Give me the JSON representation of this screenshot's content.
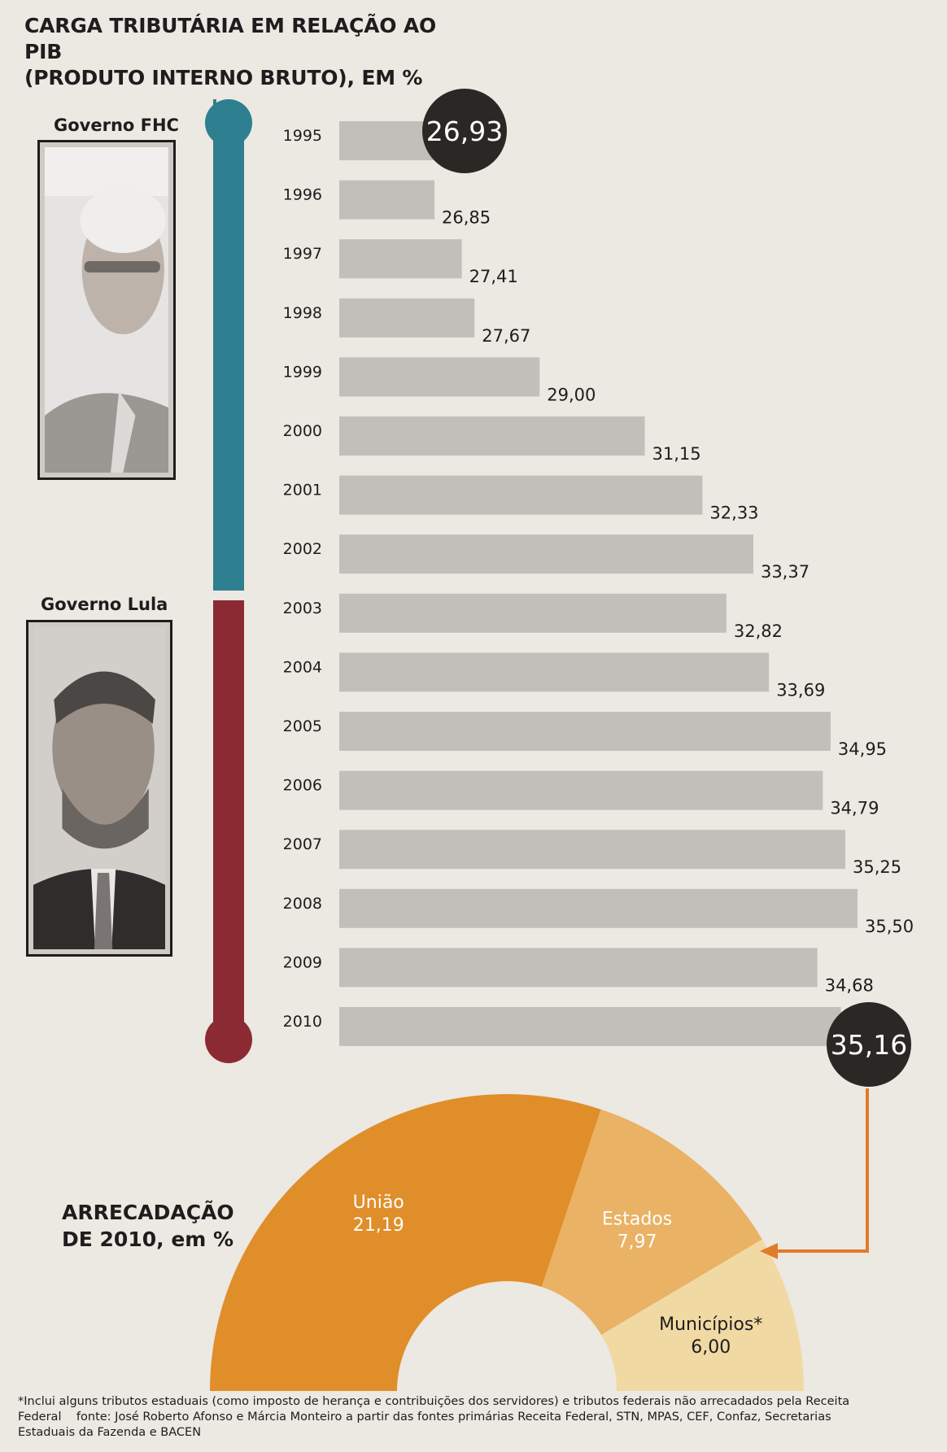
{
  "title": {
    "line1": "CARGA TRIBUTÁRIA EM RELAÇÃO AO PIB",
    "line2": "(PRODUTO INTERNO BRUTO), EM %"
  },
  "governments": [
    {
      "label": "Governo FHC",
      "color": "#2e7f8f"
    },
    {
      "label": "Governo Lula",
      "color": "#8c2a33"
    }
  ],
  "chart_data": [
    {
      "type": "bar",
      "orientation": "horizontal",
      "categories": [
        "1995",
        "1996",
        "1997",
        "1998",
        "1999",
        "2000",
        "2001",
        "2002",
        "2003",
        "2004",
        "2005",
        "2006",
        "2007",
        "2008",
        "2009",
        "2010"
      ],
      "values": [
        26.93,
        26.85,
        27.41,
        27.67,
        29.0,
        31.15,
        32.33,
        33.37,
        32.82,
        33.69,
        34.95,
        34.79,
        35.25,
        35.5,
        34.68,
        35.16
      ],
      "value_labels": [
        "26,93",
        "26,85",
        "27,41",
        "27,67",
        "29,00",
        "31,15",
        "32,33",
        "33,37",
        "32,82",
        "33,69",
        "34,95",
        "34,79",
        "35,25",
        "35,50",
        "34,68",
        "35,16"
      ],
      "highlighted": [
        "1995",
        "2010"
      ],
      "bar_color": "#c2bfbb",
      "bubble_color": "#2b2725"
    },
    {
      "type": "pie",
      "variant": "half-donut",
      "title_line1": "ARRECADAÇÃO",
      "title_line2": "DE 2010, em %",
      "slices": [
        {
          "label": "União",
          "value": 21.19,
          "value_label": "21,19",
          "color": "#e08e2a"
        },
        {
          "label": "Estados",
          "value": 7.97,
          "value_label": "7,97",
          "color": "#e9b264"
        },
        {
          "label": "Municípios*",
          "value": 6.0,
          "value_label": "6,00",
          "color": "#f1d9a4"
        }
      ],
      "arrow_color": "#e07b2a"
    }
  ],
  "footnote": {
    "line1": "*Inclui alguns tributos estaduais (como imposto de herança e contribuições dos servidores) e tributos federais não arrecadados pela Receita",
    "line2": "Federal    fonte: José Roberto Afonso e Márcia Monteiro a partir das fontes primárias Receita Federal, STN, MPAS, CEF, Confaz, Secretarias",
    "line3": "Estaduais da Fazenda e BACEN"
  }
}
